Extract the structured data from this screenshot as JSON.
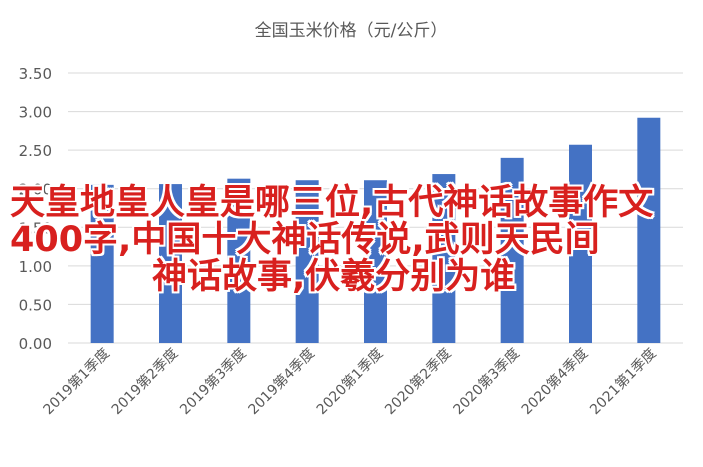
{
  "chart_data": {
    "type": "bar",
    "title": "全国玉米价格（元/公斤）",
    "categories": [
      "2019第1季度",
      "2019第2季度",
      "2019第3季度",
      "2019第4季度",
      "2020第1季度",
      "2020第2季度",
      "2020第3季度",
      "2020第4季度",
      "2021第1季度"
    ],
    "values": [
      2.05,
      2.06,
      2.13,
      2.11,
      2.11,
      2.19,
      2.4,
      2.57,
      2.92
    ],
    "ylim": [
      0,
      3.5
    ],
    "yticks": [
      "0.00",
      "0.50",
      "1.00",
      "1.50",
      "2.00",
      "2.50",
      "3.00",
      "3.50"
    ],
    "grid": true,
    "bar_color": "#4472c4"
  },
  "overlay_text": {
    "line1": "天皇地皇人皇是哪三位,古代神话故事作文",
    "line2": "400字,中国十大神话传说,武则天民间",
    "line3": "神话故事,伏羲分别为谁",
    "color": "#d8201e"
  }
}
